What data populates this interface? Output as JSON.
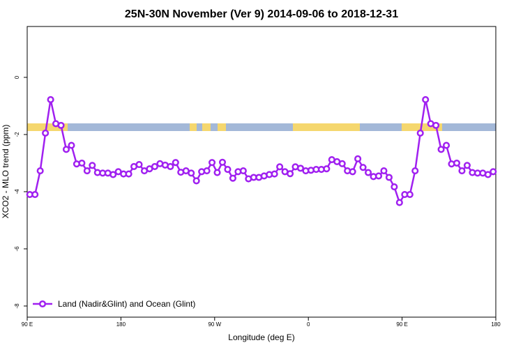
{
  "chart_data": {
    "type": "line",
    "title": "25N-30N November (Ver 9)   2014-09-06 to 2018-12-31",
    "x_label": "Longitude (deg E)",
    "y_label": "XCO2 - MLO trend (ppm)",
    "x": [
      92.5,
      97.5,
      102.5,
      107.5,
      112.5,
      117.5,
      122.5,
      127.5,
      132.5,
      137.5,
      142.5,
      147.5,
      152.5,
      157.5,
      162.5,
      167.5,
      172.5,
      177.5,
      182.5,
      187.5,
      192.5,
      197.5,
      202.5,
      207.5,
      212.5,
      217.5,
      222.5,
      227.5,
      232.5,
      237.5,
      242.5,
      247.5,
      252.5,
      257.5,
      262.5,
      267.5,
      272.5,
      277.5,
      282.5,
      287.5,
      292.5,
      297.5,
      302.5,
      307.5,
      312.5,
      317.5,
      322.5,
      327.5,
      332.5,
      337.5,
      342.5,
      347.5,
      352.5,
      357.5,
      362.5,
      367.5,
      372.5,
      377.5,
      382.5,
      387.5,
      392.5,
      397.5,
      402.5,
      407.5,
      412.5,
      417.5,
      422.5,
      427.5,
      432.5,
      437.5,
      442.5,
      447.5,
      452.5,
      457.5,
      462.5,
      467.5,
      472.5,
      477.5,
      482.5,
      487.5,
      492.5,
      497.5,
      502.5,
      507.5,
      512.5,
      517.5,
      522.5,
      527.5,
      532.5,
      537.5
    ],
    "series": [
      {
        "name": "Land (Nadir&Glint) and Ocean (Glint)",
        "color": "#a020f0",
        "values": [
          -4.1,
          -4.1,
          -3.27,
          -1.95,
          -0.78,
          -1.62,
          -1.68,
          -2.52,
          -2.38,
          -3.03,
          -3.0,
          -3.27,
          -3.08,
          -3.33,
          -3.35,
          -3.35,
          -3.4,
          -3.3,
          -3.38,
          -3.38,
          -3.12,
          -3.05,
          -3.27,
          -3.2,
          -3.12,
          -3.02,
          -3.07,
          -3.12,
          -2.98,
          -3.32,
          -3.27,
          -3.35,
          -3.62,
          -3.3,
          -3.27,
          -2.98,
          -3.33,
          -2.97,
          -3.22,
          -3.53,
          -3.3,
          -3.27,
          -3.55,
          -3.5,
          -3.5,
          -3.45,
          -3.4,
          -3.38,
          -3.13,
          -3.3,
          -3.37,
          -3.13,
          -3.18,
          -3.27,
          -3.25,
          -3.22,
          -3.22,
          -3.2,
          -2.88,
          -2.95,
          -3.02,
          -3.27,
          -3.3,
          -2.85,
          -3.15,
          -3.33,
          -3.47,
          -3.45,
          -3.27,
          -3.5,
          -3.83,
          -4.38,
          -4.1,
          -4.1,
          -3.27,
          -1.95,
          -0.78,
          -1.62,
          -1.68,
          -2.52,
          -2.38,
          -3.03,
          -3.0,
          -3.27,
          -3.08,
          -3.33,
          -3.35,
          -3.35,
          -3.4,
          -3.3
        ]
      }
    ],
    "xlim": [
      90,
      540
    ],
    "xticks": [
      {
        "value": 90,
        "label": "90 E"
      },
      180,
      {
        "value": 270,
        "label": "90 W"
      },
      {
        "value": 360,
        "label": "0"
      },
      {
        "value": 450,
        "label": "90 E"
      },
      {
        "value": 540,
        "label": "180"
      }
    ],
    "ylim": [
      -8.39,
      1.78
    ],
    "yticks": [
      0,
      -2,
      -4,
      -6,
      -8
    ],
    "legend": "bottom-left"
  }
}
